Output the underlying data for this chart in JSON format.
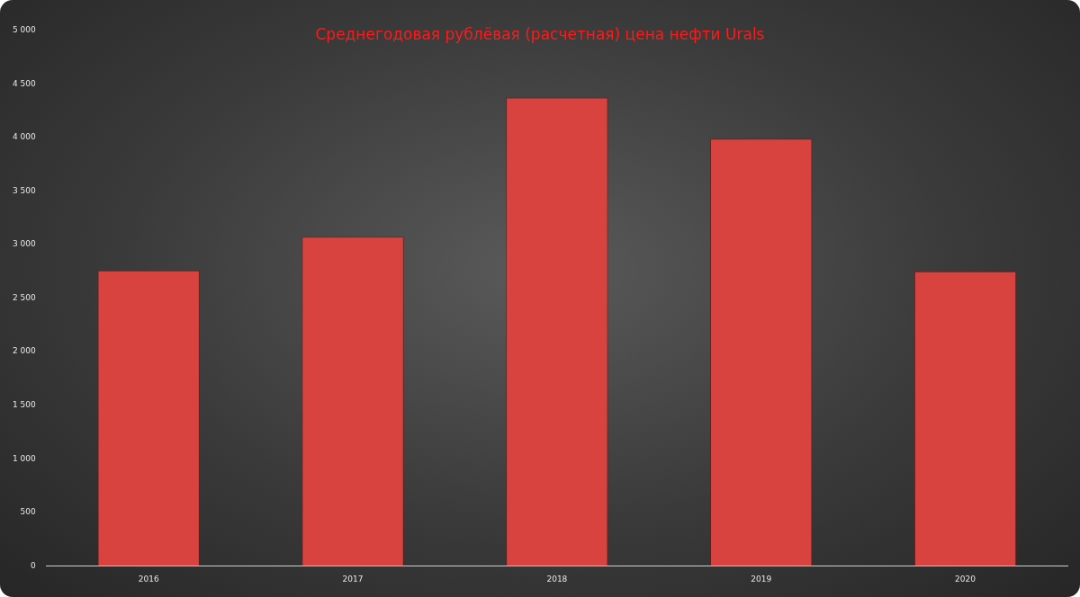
{
  "chart_data": {
    "type": "bar",
    "title": "Среднегодовая рублёвая (расчетная) цена нефти Urals",
    "categories": [
      "2016",
      "2017",
      "2018",
      "2019",
      "2020"
    ],
    "values": [
      2760,
      3075,
      4375,
      3990,
      2750
    ],
    "color": "#d9433f",
    "ylim": [
      0,
      5000
    ],
    "yticks": [
      {
        "value": 0,
        "label": "0"
      },
      {
        "value": 500,
        "label": "500"
      },
      {
        "value": 1000,
        "label": "1 000"
      },
      {
        "value": 1500,
        "label": "1 500"
      },
      {
        "value": 2000,
        "label": "2 000"
      },
      {
        "value": 2500,
        "label": "2 500"
      },
      {
        "value": 3000,
        "label": "3 000"
      },
      {
        "value": 3500,
        "label": "3 500"
      },
      {
        "value": 4000,
        "label": "4 000"
      },
      {
        "value": 4500,
        "label": "4 500"
      },
      {
        "value": 5000,
        "label": "5 000"
      }
    ],
    "grid": false,
    "legend": false
  }
}
